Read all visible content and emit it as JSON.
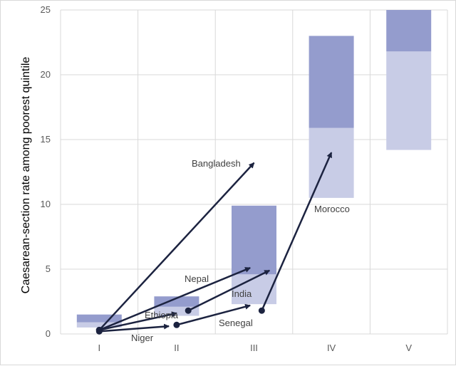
{
  "chart_data": {
    "type": "bar",
    "ylabel": "Caesarean-section rate among poorest quintile",
    "xlabel": "",
    "ylim": [
      0,
      25
    ],
    "grid": true,
    "y_ticks": [
      "0",
      "5",
      "10",
      "15",
      "20",
      "25"
    ],
    "categories": [
      "I",
      "II",
      "III",
      "IV",
      "V"
    ],
    "range_bands": [
      {
        "category": "I",
        "low": 0.5,
        "mid": 0.9,
        "high": 1.5
      },
      {
        "category": "II",
        "low": 1.4,
        "mid": 2.1,
        "high": 2.9
      },
      {
        "category": "III",
        "low": 2.3,
        "mid": 4.6,
        "high": 9.9
      },
      {
        "category": "IV",
        "low": 10.5,
        "mid": 15.9,
        "high": 23.0
      },
      {
        "category": "V",
        "low": 14.2,
        "mid": 21.8,
        "high": 25.0
      }
    ],
    "country_trajectories": [
      {
        "name": "Bangladesh",
        "from": [
          1.0,
          0.3
        ],
        "to": [
          3.0,
          13.2
        ]
      },
      {
        "name": "Nepal",
        "from": [
          1.0,
          0.3
        ],
        "to": [
          2.95,
          5.1
        ]
      },
      {
        "name": "Ethiopia",
        "from": [
          1.0,
          0.3
        ],
        "to": [
          2.0,
          1.6
        ]
      },
      {
        "name": "Niger",
        "from": [
          1.0,
          0.2
        ],
        "to": [
          1.9,
          0.6
        ]
      },
      {
        "name": "India",
        "from": [
          2.15,
          1.8
        ],
        "to": [
          3.2,
          4.9
        ]
      },
      {
        "name": "Senegal",
        "from": [
          2.0,
          0.7
        ],
        "to": [
          2.95,
          2.2
        ]
      },
      {
        "name": "Morocco",
        "from": [
          3.1,
          1.8
        ],
        "to": [
          4.0,
          14.0
        ]
      }
    ]
  },
  "colors": {
    "band_lower": "#c8cce6",
    "band_upper": "#949ccd",
    "arrow": "#1c2340",
    "grid": "#d9d9d9"
  }
}
